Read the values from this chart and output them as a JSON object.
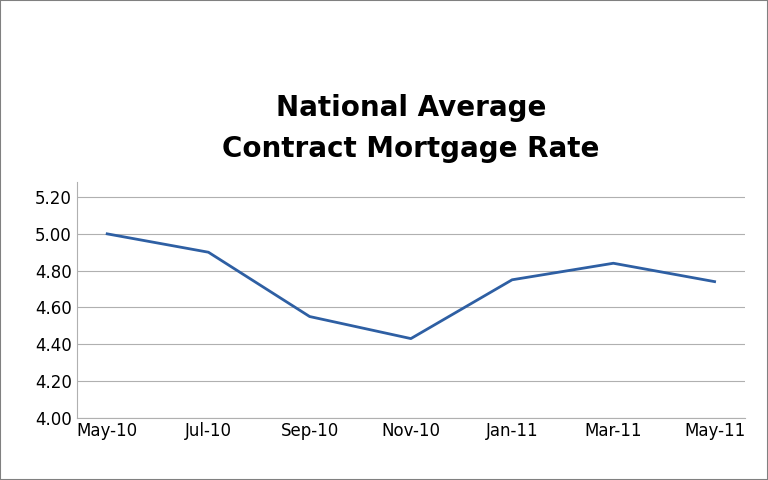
{
  "title_line1": "National Average",
  "title_line2": "Contract Mortgage Rate",
  "x_labels": [
    "May-10",
    "Jul-10",
    "Sep-10",
    "Nov-10",
    "Jan-11",
    "Mar-11",
    "May-11"
  ],
  "y_values": [
    5.0,
    4.9,
    4.55,
    4.43,
    4.75,
    4.84,
    4.74
  ],
  "line_color": "#2E5FA3",
  "line_width": 2.0,
  "ylim": [
    4.0,
    5.28
  ],
  "yticks": [
    4.0,
    4.2,
    4.4,
    4.6,
    4.8,
    5.0,
    5.2
  ],
  "background_color": "#ffffff",
  "grid_color": "#b0b0b0",
  "border_color": "#808080",
  "title_fontsize": 20,
  "title_fontweight": "bold",
  "tick_fontsize": 12
}
